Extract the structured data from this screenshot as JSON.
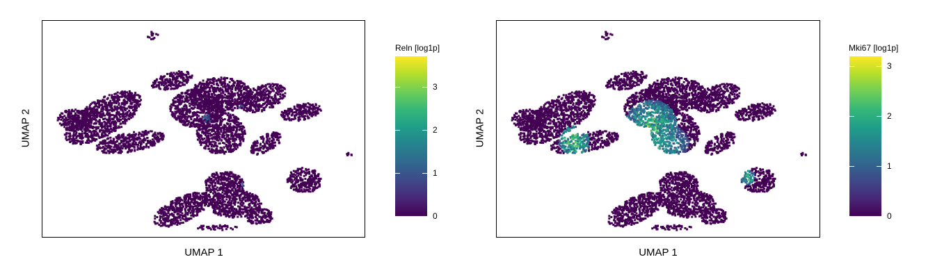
{
  "chart_data": [
    {
      "type": "scatter",
      "title": "",
      "xlabel": "UMAP 1",
      "ylabel": "UMAP 2",
      "feature": "Reln",
      "legend": {
        "title": "Reln [log1p]",
        "min": 0,
        "max": 3.7,
        "ticks": [
          0,
          1,
          2,
          3
        ],
        "colormap": "viridis"
      },
      "expression_summary": {
        "max_observed": 1.3,
        "high_regions": []
      }
    },
    {
      "type": "scatter",
      "title": "",
      "xlabel": "UMAP 1",
      "ylabel": "UMAP 2",
      "feature": "Mki67",
      "legend": {
        "title": "Mki67 [log1p]",
        "min": 0,
        "max": 3.2,
        "ticks": [
          0,
          1,
          2,
          3
        ],
        "colormap": "viridis"
      },
      "expression_summary": {
        "max_observed": 3.2,
        "high_regions": [
          "left-arm tip",
          "central column",
          "right small island"
        ]
      }
    }
  ],
  "colors": {
    "viridis": [
      "#440154",
      "#482878",
      "#3e4989",
      "#31688e",
      "#26828e",
      "#1f9e89",
      "#35b779",
      "#6ece58",
      "#b5de2b",
      "#fde725"
    ],
    "frame": "#000000",
    "background": "#ffffff"
  }
}
